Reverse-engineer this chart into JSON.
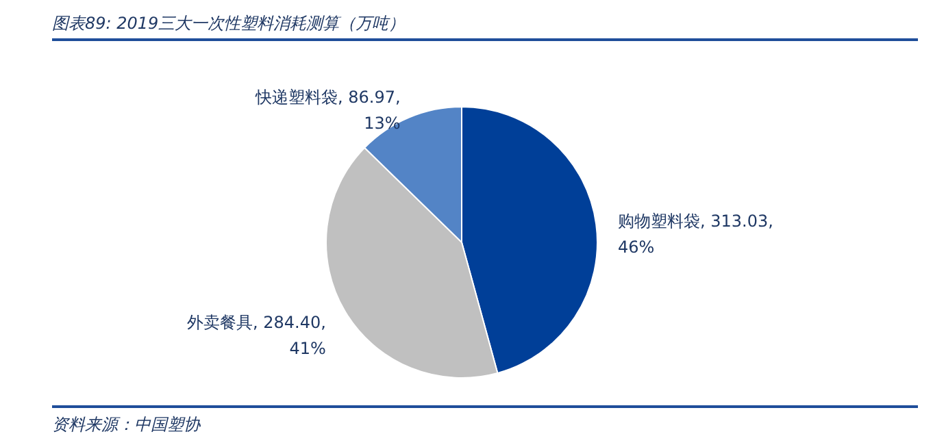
{
  "chart_data": {
    "type": "pie",
    "title": "图表89: 2019三大一次性塑料消耗测算（万吨）",
    "categories": [
      "购物塑料袋",
      "外卖餐具",
      "快递塑料袋"
    ],
    "values": [
      313.03,
      284.4,
      86.97
    ],
    "colors": [
      "#003f98",
      "#c0c0c0",
      "#5384c6"
    ],
    "value_labels": [
      "313.03, 46%",
      "284.40, 41%",
      "86.97, 13%"
    ],
    "annotations": [
      "资料来源：中国塑协"
    ]
  }
}
